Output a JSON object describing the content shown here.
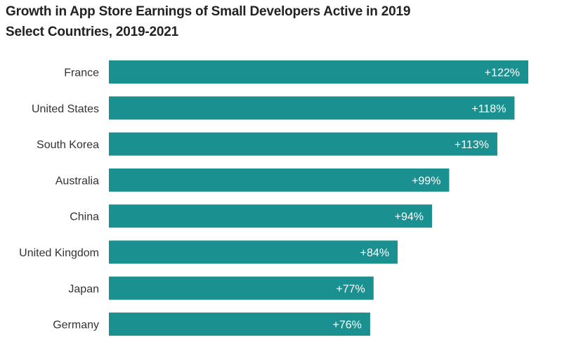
{
  "chart_data": {
    "type": "bar",
    "orientation": "horizontal",
    "title": "Growth in App Store Earnings of Small Developers Active in 2019",
    "subtitle": "Select Countries, 2019-2021",
    "categories": [
      "France",
      "United States",
      "South Korea",
      "Australia",
      "China",
      "United Kingdom",
      "Japan",
      "Germany"
    ],
    "values": [
      122,
      118,
      113,
      99,
      94,
      84,
      77,
      76
    ],
    "labels": [
      "+122%",
      "+118%",
      "+113%",
      "+99%",
      "+94%",
      "+84%",
      "+77%",
      "+76%"
    ],
    "unit": "%",
    "xlim": [
      0,
      122
    ],
    "grid": false,
    "legend": "none",
    "colors": {
      "bar": "#1a9190",
      "label": "#ffffff",
      "category": "#333333"
    }
  }
}
